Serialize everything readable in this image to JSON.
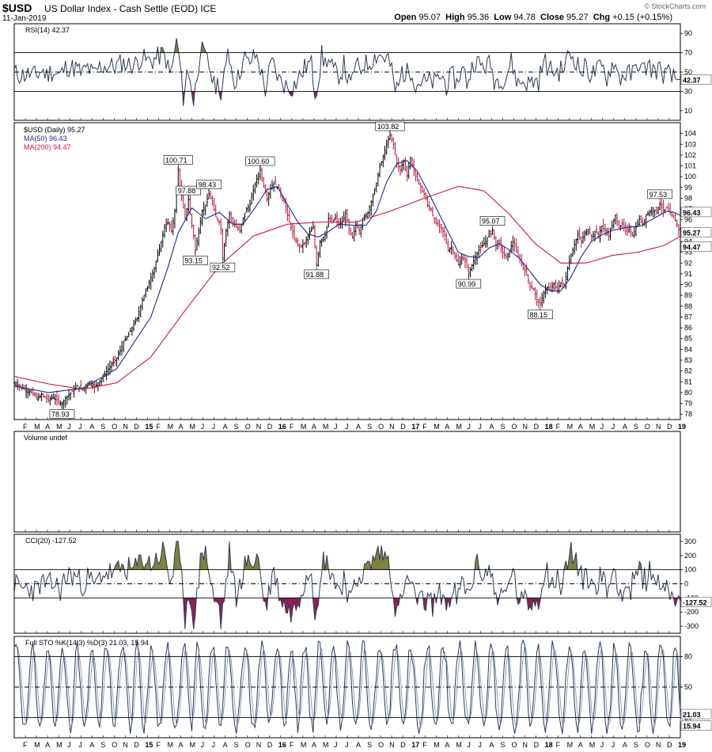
{
  "header": {
    "symbol": "$USD",
    "title": "US Dollar Index - Cash Settle (EOD) ICE",
    "date": "11-Jan-2019",
    "open_label": "Open",
    "open": "95.07",
    "high_label": "High",
    "high": "95.36",
    "low_label": "Low",
    "low": "94.78",
    "close_label": "Close",
    "close": "95.27",
    "chg_label": "Chg",
    "chg": "+0.15 (+0.15%)",
    "brand": "© StockCharts.com"
  },
  "colors": {
    "price_up": "#000000",
    "price_down": "#c0143c",
    "ma50": "#1f2a8c",
    "ma200": "#d2143c",
    "osc_line": "#2b3a55",
    "overbought_fill": "#808040",
    "oversold_fill": "#8b2252"
  },
  "x_axis_labels": [
    "F",
    "M",
    "A",
    "M",
    "J",
    "J",
    "A",
    "S",
    "O",
    "N",
    "D",
    "15",
    "F",
    "M",
    "A",
    "M",
    "J",
    "J",
    "A",
    "S",
    "O",
    "N",
    "D",
    "16",
    "F",
    "M",
    "A",
    "M",
    "J",
    "J",
    "A",
    "S",
    "O",
    "N",
    "D",
    "17",
    "F",
    "M",
    "A",
    "M",
    "J",
    "J",
    "A",
    "S",
    "O",
    "N",
    "D",
    "18",
    "F",
    "M",
    "A",
    "M",
    "J",
    "J",
    "A",
    "S",
    "O",
    "N",
    "D",
    "19"
  ],
  "panels": {
    "rsi": {
      "label": "RSI(14) 42.37",
      "value_tag": "42.37",
      "ticks": [
        "10",
        "30",
        "50",
        "70",
        "90"
      ]
    },
    "price": {
      "legend": [
        "$USD (Daily) 95.27",
        "MA(50) 96.43",
        "MA(200) 94.47"
      ],
      "tags": [
        "96.43",
        "95.27",
        "94.47"
      ],
      "ticks": [
        "78",
        "79",
        "80",
        "81",
        "82",
        "83",
        "84",
        "85",
        "86",
        "87",
        "88",
        "89",
        "90",
        "91",
        "92",
        "93",
        "94",
        "95",
        "96",
        "97",
        "98",
        "99",
        "100",
        "101",
        "102",
        "103",
        "104"
      ]
    },
    "volume": {
      "label": "Volume undef"
    },
    "cci": {
      "label": "CCI(20) -127.52",
      "value_tag": "-127.52",
      "ticks": [
        "-300",
        "-200",
        "-100",
        "0",
        "100",
        "200",
        "300"
      ]
    },
    "sto": {
      "label": "Full STO %K(14,3) %D(3) 21.03, 15.94",
      "tags": [
        "21.03",
        "15.94"
      ],
      "ticks": [
        "20",
        "50",
        "80"
      ]
    }
  },
  "chart_data": [
    {
      "type": "line",
      "title": "RSI(14) 42.37",
      "ylim": [
        0,
        100
      ],
      "guides": [
        30,
        70
      ],
      "last": 42.37
    },
    {
      "type": "line",
      "title": "$USD (Daily) 95.27",
      "ylim": [
        77.5,
        105
      ],
      "points": [
        [
          0,
          80.9
        ],
        [
          6,
          80.3
        ],
        [
          10,
          80.0
        ],
        [
          14,
          79.4
        ],
        [
          16,
          79.8
        ],
        [
          20,
          79.3
        ],
        [
          22,
          79.6
        ],
        [
          26,
          79.2
        ],
        [
          28,
          78.93
        ],
        [
          30,
          79.5
        ],
        [
          34,
          80.1
        ],
        [
          37,
          80.6
        ],
        [
          40,
          80.3
        ],
        [
          44,
          81.0
        ],
        [
          47,
          80.5
        ],
        [
          52,
          81.5
        ],
        [
          56,
          82.4
        ],
        [
          60,
          83.2
        ],
        [
          64,
          84.6
        ],
        [
          68,
          85.7
        ],
        [
          72,
          86.9
        ],
        [
          75,
          88.6
        ],
        [
          78,
          89.8
        ],
        [
          82,
          91.5
        ],
        [
          86,
          93.9
        ],
        [
          88,
          95.4
        ],
        [
          90,
          95.7
        ],
        [
          92,
          95.0
        ],
        [
          94,
          96.8
        ],
        [
          96,
          100.71
        ],
        [
          97,
          99.0
        ],
        [
          98,
          98.0
        ],
        [
          100,
          96.2
        ],
        [
          102,
          97.88
        ],
        [
          103,
          96.5
        ],
        [
          105,
          94.5
        ],
        [
          106,
          93.15
        ],
        [
          108,
          95.0
        ],
        [
          110,
          96.8
        ],
        [
          112,
          97.4
        ],
        [
          114,
          98.43
        ],
        [
          116,
          97.5
        ],
        [
          118,
          96.3
        ],
        [
          120,
          95.8
        ],
        [
          121,
          95.2
        ],
        [
          122,
          92.52
        ],
        [
          124,
          95.0
        ],
        [
          126,
          96.5
        ],
        [
          128,
          95.8
        ],
        [
          130,
          95.3
        ],
        [
          132,
          94.9
        ],
        [
          134,
          96.2
        ],
        [
          136,
          97.0
        ],
        [
          138,
          97.4
        ],
        [
          140,
          98.8
        ],
        [
          142,
          99.8
        ],
        [
          144,
          100.6
        ],
        [
          146,
          99.2
        ],
        [
          148,
          98.0
        ],
        [
          150,
          98.9
        ],
        [
          152,
          99.5
        ],
        [
          155,
          98.8
        ],
        [
          158,
          97.6
        ],
        [
          161,
          95.8
        ],
        [
          164,
          94.2
        ],
        [
          167,
          93.5
        ],
        [
          170,
          93.8
        ],
        [
          173,
          94.8
        ],
        [
          175,
          95.3
        ],
        [
          177,
          91.88
        ],
        [
          179,
          94.0
        ],
        [
          182,
          94.6
        ],
        [
          184,
          96.1
        ],
        [
          186,
          95.8
        ],
        [
          188,
          96.2
        ],
        [
          190,
          95.5
        ],
        [
          192,
          95.8
        ],
        [
          194,
          96.6
        ],
        [
          196,
          95.0
        ],
        [
          198,
          94.3
        ],
        [
          200,
          95.6
        ],
        [
          202,
          95.0
        ],
        [
          204,
          96.0
        ],
        [
          207,
          96.7
        ],
        [
          210,
          98.2
        ],
        [
          212,
          99.4
        ],
        [
          214,
          100.9
        ],
        [
          216,
          101.8
        ],
        [
          218,
          103.0
        ],
        [
          220,
          103.82
        ],
        [
          222,
          103.0
        ],
        [
          224,
          101.2
        ],
        [
          226,
          100.6
        ],
        [
          228,
          101.5
        ],
        [
          230,
          100.1
        ],
        [
          232,
          101.7
        ],
        [
          234,
          100.5
        ],
        [
          236,
          99.6
        ],
        [
          238,
          99.0
        ],
        [
          240,
          98.4
        ],
        [
          242,
          97.3
        ],
        [
          244,
          97.0
        ],
        [
          246,
          95.8
        ],
        [
          248,
          95.5
        ],
        [
          250,
          95.2
        ],
        [
          252,
          94.6
        ],
        [
          254,
          93.2
        ],
        [
          256,
          93.5
        ],
        [
          258,
          92.6
        ],
        [
          260,
          91.8
        ],
        [
          262,
          92.5
        ],
        [
          264,
          92.1
        ],
        [
          266,
          90.99
        ],
        [
          268,
          91.8
        ],
        [
          270,
          92.6
        ],
        [
          272,
          93.2
        ],
        [
          274,
          93.6
        ],
        [
          276,
          94.0
        ],
        [
          278,
          94.7
        ],
        [
          280,
          95.07
        ],
        [
          282,
          93.6
        ],
        [
          284,
          93.9
        ],
        [
          286,
          93.0
        ],
        [
          288,
          92.4
        ],
        [
          290,
          93.2
        ],
        [
          292,
          94.0
        ],
        [
          294,
          93.0
        ],
        [
          296,
          92.3
        ],
        [
          298,
          91.6
        ],
        [
          300,
          90.9
        ],
        [
          302,
          89.9
        ],
        [
          304,
          89.5
        ],
        [
          306,
          88.6
        ],
        [
          308,
          88.15
        ],
        [
          310,
          89.3
        ],
        [
          312,
          89.7
        ],
        [
          314,
          89.5
        ],
        [
          316,
          90.1
        ],
        [
          318,
          89.5
        ],
        [
          320,
          90.2
        ],
        [
          322,
          89.9
        ],
        [
          324,
          91.5
        ],
        [
          326,
          92.8
        ],
        [
          328,
          93.7
        ],
        [
          330,
          94.6
        ],
        [
          332,
          94.0
        ],
        [
          334,
          94.7
        ],
        [
          336,
          95.1
        ],
        [
          338,
          94.4
        ],
        [
          340,
          94.9
        ],
        [
          342,
          94.6
        ],
        [
          344,
          95.4
        ],
        [
          346,
          95.0
        ],
        [
          348,
          94.6
        ],
        [
          350,
          95.4
        ],
        [
          352,
          96.4
        ],
        [
          354,
          95.3
        ],
        [
          356,
          95.6
        ],
        [
          358,
          94.9
        ],
        [
          360,
          95.3
        ],
        [
          362,
          94.5
        ],
        [
          364,
          95.3
        ],
        [
          366,
          96.1
        ],
        [
          368,
          95.6
        ],
        [
          370,
          96.5
        ],
        [
          372,
          96.7
        ],
        [
          374,
          97.0
        ],
        [
          376,
          96.8
        ],
        [
          378,
          97.53
        ],
        [
          380,
          96.8
        ],
        [
          382,
          97.1
        ],
        [
          384,
          96.5
        ],
        [
          386,
          96.2
        ],
        [
          388,
          95.6
        ],
        [
          389,
          95.07
        ],
        [
          390,
          95.27
        ]
      ],
      "ma50": [
        [
          0,
          80.6
        ],
        [
          20,
          80.0
        ],
        [
          40,
          80.4
        ],
        [
          60,
          82.2
        ],
        [
          80,
          87.0
        ],
        [
          90,
          91.6
        ],
        [
          96,
          94.8
        ],
        [
          104,
          97.1
        ],
        [
          112,
          96.1
        ],
        [
          120,
          96.7
        ],
        [
          128,
          95.6
        ],
        [
          134,
          95.6
        ],
        [
          140,
          96.9
        ],
        [
          148,
          98.8
        ],
        [
          154,
          99.1
        ],
        [
          160,
          97.4
        ],
        [
          166,
          95.8
        ],
        [
          172,
          94.7
        ],
        [
          178,
          94.4
        ],
        [
          184,
          94.9
        ],
        [
          190,
          95.6
        ],
        [
          198,
          95.5
        ],
        [
          206,
          95.5
        ],
        [
          212,
          96.8
        ],
        [
          218,
          99.5
        ],
        [
          224,
          101.2
        ],
        [
          230,
          101.5
        ],
        [
          236,
          100.5
        ],
        [
          242,
          98.7
        ],
        [
          248,
          96.8
        ],
        [
          254,
          94.9
        ],
        [
          260,
          93.0
        ],
        [
          266,
          92.6
        ],
        [
          272,
          92.5
        ],
        [
          278,
          93.4
        ],
        [
          284,
          93.8
        ],
        [
          290,
          93.2
        ],
        [
          296,
          92.4
        ],
        [
          302,
          91.2
        ],
        [
          308,
          90.0
        ],
        [
          314,
          89.4
        ],
        [
          320,
          89.4
        ],
        [
          326,
          90.7
        ],
        [
          332,
          92.6
        ],
        [
          338,
          94.0
        ],
        [
          344,
          94.6
        ],
        [
          350,
          95.0
        ],
        [
          358,
          95.3
        ],
        [
          366,
          95.4
        ],
        [
          374,
          96.1
        ],
        [
          382,
          96.8
        ],
        [
          386,
          96.7
        ],
        [
          390,
          96.43
        ]
      ],
      "ma200": [
        [
          0,
          81.5
        ],
        [
          20,
          80.8
        ],
        [
          40,
          80.3
        ],
        [
          60,
          80.9
        ],
        [
          80,
          83.3
        ],
        [
          100,
          87.6
        ],
        [
          120,
          91.7
        ],
        [
          140,
          94.5
        ],
        [
          160,
          95.6
        ],
        [
          180,
          95.8
        ],
        [
          200,
          95.8
        ],
        [
          220,
          96.8
        ],
        [
          240,
          98.0
        ],
        [
          260,
          99.1
        ],
        [
          275,
          98.7
        ],
        [
          290,
          96.5
        ],
        [
          305,
          93.8
        ],
        [
          320,
          92.0
        ],
        [
          335,
          92.0
        ],
        [
          350,
          92.7
        ],
        [
          365,
          93.0
        ],
        [
          380,
          93.6
        ],
        [
          390,
          94.47
        ]
      ],
      "callouts": [
        [
          28,
          78.93,
          "78.93"
        ],
        [
          96,
          100.71,
          "100.71"
        ],
        [
          102,
          97.88,
          "97.88"
        ],
        [
          106,
          93.15,
          "93.15"
        ],
        [
          114,
          98.43,
          "98.43"
        ],
        [
          122,
          92.52,
          "92.52"
        ],
        [
          144,
          100.6,
          "100.60"
        ],
        [
          177,
          91.88,
          "91.88"
        ],
        [
          220,
          103.82,
          "103.82"
        ],
        [
          266,
          90.99,
          "90.99"
        ],
        [
          280,
          95.07,
          "95.07"
        ],
        [
          308,
          88.15,
          "88.15"
        ],
        [
          378,
          97.53,
          "97.53"
        ]
      ]
    },
    {
      "type": "line",
      "title": "CCI(20) -127.52",
      "ylim": [
        -350,
        350
      ],
      "guides": [
        -100,
        0,
        100
      ],
      "last": -127.52
    },
    {
      "type": "line",
      "title": "Full STO %K(14,3) %D(3) 21.03, 15.94",
      "ylim": [
        0,
        100
      ],
      "guides": [
        20,
        50,
        80
      ],
      "last_k": 21.03,
      "last_d": 15.94
    }
  ]
}
